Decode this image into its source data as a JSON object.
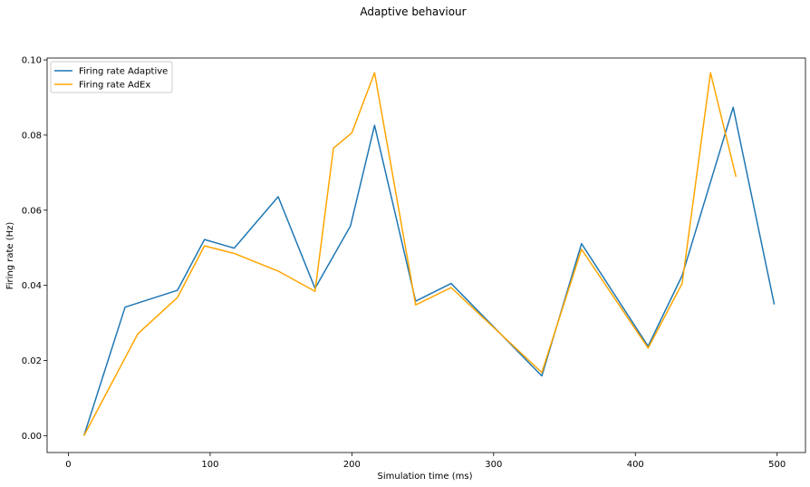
{
  "chart_data": {
    "type": "line",
    "title": "Adaptive behaviour",
    "xlabel": "Simulation time (ms)",
    "ylabel": "Firing rate (Hz)",
    "xlim": [
      -15,
      520
    ],
    "ylim": [
      -0.0045,
      0.1005
    ],
    "xticks": [
      0,
      100,
      200,
      300,
      400,
      500
    ],
    "yticks": [
      0.0,
      0.02,
      0.04,
      0.06,
      0.08,
      0.1
    ],
    "ytick_labels": [
      "0.00",
      "0.02",
      "0.04",
      "0.06",
      "0.08",
      "0.10"
    ],
    "grid": false,
    "legend_position": "top-left",
    "series": [
      {
        "name": "Firing rate Adaptive",
        "color": "#1f77b4",
        "x": [
          11,
          40,
          77,
          96,
          117,
          148,
          174,
          199,
          216,
          245,
          270,
          334,
          362,
          409,
          433,
          469,
          498
        ],
        "y": [
          0.0,
          0.0342,
          0.0387,
          0.0522,
          0.0499,
          0.0636,
          0.0392,
          0.0558,
          0.0826,
          0.0358,
          0.0405,
          0.0159,
          0.0511,
          0.0238,
          0.0426,
          0.0874,
          0.0349
        ]
      },
      {
        "name": "Firing rate AdEx",
        "color": "#ffa500",
        "x": [
          11,
          49,
          77,
          96,
          117,
          148,
          174,
          187,
          200,
          216,
          245,
          270,
          334,
          362,
          409,
          433,
          453,
          471
        ],
        "y": [
          0.0,
          0.0271,
          0.0368,
          0.0505,
          0.0485,
          0.0438,
          0.0384,
          0.0765,
          0.0806,
          0.0966,
          0.0348,
          0.0394,
          0.0168,
          0.0496,
          0.0233,
          0.0405,
          0.0966,
          0.0689
        ]
      }
    ]
  }
}
